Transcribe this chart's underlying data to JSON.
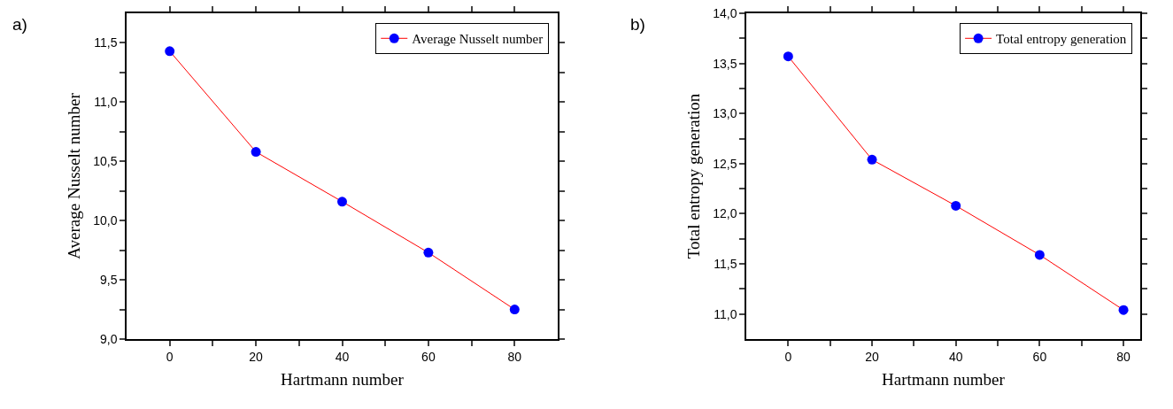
{
  "chart_data": [
    {
      "type": "line",
      "xlabel": "Hartmann number",
      "ylabel": "Average Nusselt number",
      "annotations": [
        "a)"
      ],
      "x": [
        0,
        20,
        40,
        60,
        80
      ],
      "series": [
        {
          "name": "Average Nusselt number",
          "color": "#ff0000",
          "colors": [
            "#0000ff",
            "#0000ff",
            "#0000ff",
            "#0000ff",
            "#0000ff"
          ],
          "values": [
            11.43,
            10.58,
            10.16,
            9.73,
            9.25
          ]
        }
      ],
      "xlim": [
        -10,
        90
      ],
      "xticks": [
        0,
        {
          "value": 10,
          "label": null
        },
        20,
        {
          "value": 30,
          "label": null
        },
        40,
        {
          "value": 50,
          "label": null
        },
        60,
        {
          "value": 70,
          "label": null
        },
        80
      ],
      "ylim": [
        9.0,
        11.75
      ],
      "yticks": [
        {
          "value": 9.0,
          "label": "9,0"
        },
        {
          "value": 9.25,
          "label": null
        },
        {
          "value": 9.5,
          "label": "9,5"
        },
        {
          "value": 9.75,
          "label": null
        },
        {
          "value": 10.0,
          "label": "10,0"
        },
        {
          "value": 10.25,
          "label": null
        },
        {
          "value": 10.5,
          "label": "10,5"
        },
        {
          "value": 10.75,
          "label": null
        },
        {
          "value": 11.0,
          "label": "11,0"
        },
        {
          "value": 11.25,
          "label": null
        },
        {
          "value": 11.5,
          "label": "11,5"
        }
      ],
      "grid": false,
      "legend": "top right",
      "marker": "circle",
      "line_style": "solid"
    },
    {
      "type": "line",
      "xlabel": "Hartmann number",
      "ylabel": "Total entropy generation",
      "annotations": [
        "b)"
      ],
      "x": [
        0,
        20,
        40,
        60,
        80
      ],
      "series": [
        {
          "name": "Total entropy generation",
          "color": "#ff0000",
          "colors": [
            "#0000ff",
            "#0000ff",
            "#0000ff",
            "#0000ff",
            "#0000ff"
          ],
          "values": [
            13.57,
            12.54,
            12.08,
            11.59,
            11.04
          ]
        }
      ],
      "xlim": [
        -10,
        84
      ],
      "xticks": [
        0,
        {
          "value": 10,
          "label": null
        },
        20,
        {
          "value": 30,
          "label": null
        },
        40,
        {
          "value": 50,
          "label": null
        },
        60,
        {
          "value": 70,
          "label": null
        },
        80
      ],
      "ylim": [
        10.75,
        14.0
      ],
      "yticks": [
        {
          "value": 11.0,
          "label": "11,0"
        },
        {
          "value": 11.25,
          "label": null
        },
        {
          "value": 11.5,
          "label": "11,5"
        },
        {
          "value": 11.75,
          "label": null
        },
        {
          "value": 12.0,
          "label": "12,0"
        },
        {
          "value": 12.25,
          "label": null
        },
        {
          "value": 12.5,
          "label": "12,5"
        },
        {
          "value": 12.75,
          "label": null
        },
        {
          "value": 13.0,
          "label": "13,0"
        },
        {
          "value": 13.25,
          "label": null
        },
        {
          "value": 13.5,
          "label": "13,5"
        },
        {
          "value": 13.75,
          "label": null
        },
        {
          "value": 14.0,
          "label": "14,0"
        }
      ],
      "grid": false,
      "legend": "top right",
      "marker": "circle",
      "line_style": "solid"
    }
  ]
}
